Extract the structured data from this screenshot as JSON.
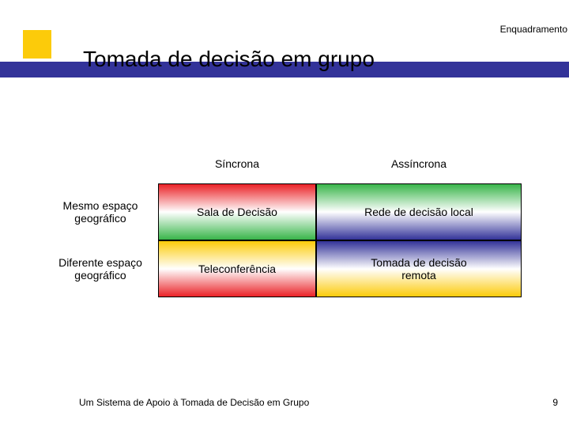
{
  "header": {
    "section": "Enquadramento"
  },
  "title": "Tomada de decisão em grupo",
  "matrix": {
    "col_headers": [
      "Síncrona",
      "Assíncrona"
    ],
    "row_headers": [
      {
        "line1": "Mesmo espaço",
        "line2": "geográfico"
      },
      {
        "line1": "Diferente espaço",
        "line2": "geográfico"
      }
    ],
    "cells": [
      [
        {
          "line1": "Sala de Decisão",
          "line2": ""
        },
        {
          "line1": "Rede de decisão local",
          "line2": ""
        }
      ],
      [
        {
          "line1": "Teleconferência",
          "line2": ""
        },
        {
          "line1": "Tomada de decisão",
          "line2": "remota"
        }
      ]
    ],
    "cell_gradients": [
      [
        {
          "from": "#ea2227",
          "mid": "#ffffff",
          "to": "#39b54a"
        },
        {
          "from": "#39b54a",
          "mid": "#ffffff",
          "to": "#333399"
        }
      ],
      [
        {
          "from": "#fccb0a",
          "mid": "#ffffff",
          "to": "#ea2227"
        },
        {
          "from": "#333399",
          "mid": "#ffffff",
          "to": "#fccb0a"
        }
      ]
    ]
  },
  "footer": {
    "text": "Um Sistema de Apoio à Tomada de Decisão em Grupo",
    "page": "9"
  },
  "style": {
    "accent_yellow": "#fccb0a",
    "accent_blue": "#333399",
    "border": "#000000",
    "bg": "#ffffff",
    "text": "#000000",
    "title_fontsize": 28,
    "body_fontsize": 14,
    "small_fontsize": 12
  }
}
